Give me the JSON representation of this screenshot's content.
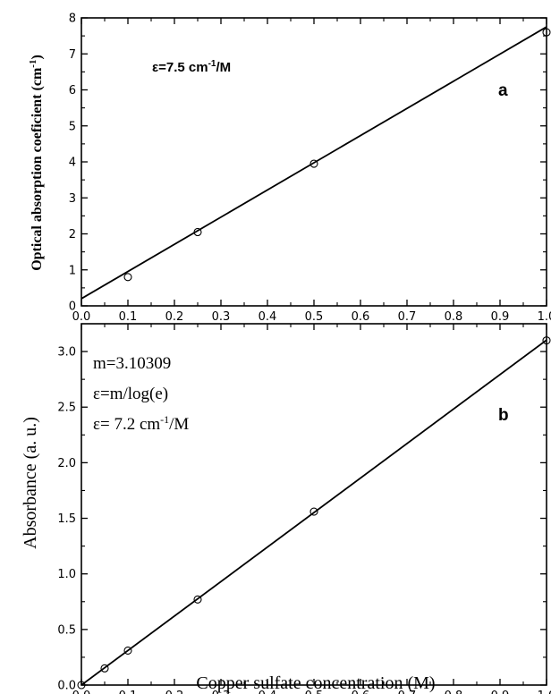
{
  "chart_data": [
    {
      "panel": "a",
      "type": "scatter",
      "xlabel": "",
      "ylabel": "Optical absorption coeficient (cm",
      "ylabel_unit_sup": "-1",
      "ylabel_close": ")",
      "xlim": [
        0.0,
        1.0
      ],
      "ylim": [
        0,
        8
      ],
      "xticks": [
        "0.0",
        "0.1",
        "0.2",
        "0.3",
        "0.4",
        "0.5",
        "0.6",
        "0.7",
        "0.8",
        "0.9",
        "1.0"
      ],
      "yticks": [
        "0",
        "1",
        "2",
        "3",
        "4",
        "5",
        "6",
        "7",
        "8"
      ],
      "points": [
        {
          "x": 0.1,
          "y": 0.8
        },
        {
          "x": 0.25,
          "y": 2.05
        },
        {
          "x": 0.5,
          "y": 3.95
        },
        {
          "x": 1.0,
          "y": 7.6
        }
      ],
      "fit": {
        "x": [
          0.0,
          1.0
        ],
        "y": [
          0.2,
          7.75
        ]
      },
      "annotation": {
        "prefix": "ε=7.5 cm",
        "sup": "-1",
        "suffix": "/M"
      },
      "letter": "a",
      "grid": false
    },
    {
      "panel": "b",
      "type": "scatter",
      "xlabel": "Copper sulfate concentration (M)",
      "ylabel": "Absorbance (a. u.)",
      "xlim": [
        0.0,
        1.0
      ],
      "ylim": [
        0.0,
        3.25
      ],
      "xticks": [
        "0.0",
        "0.1",
        "0.2",
        "0.3",
        "0.4",
        "0.5",
        "0.6",
        "0.7",
        "0.8",
        "0.9",
        "1.0"
      ],
      "yticks": [
        "0.0",
        "0.5",
        "1.0",
        "1.5",
        "2.0",
        "2.5",
        "3.0"
      ],
      "points": [
        {
          "x": 0.0,
          "y": 0.0
        },
        {
          "x": 0.05,
          "y": 0.15
        },
        {
          "x": 0.1,
          "y": 0.31
        },
        {
          "x": 0.25,
          "y": 0.77
        },
        {
          "x": 0.5,
          "y": 1.56
        },
        {
          "x": 1.0,
          "y": 3.1
        }
      ],
      "fit": {
        "x": [
          0.0,
          1.0
        ],
        "y": [
          0.0,
          3.10309
        ]
      },
      "annotation": {
        "line1": "m=3.10309",
        "line2": "ε=m/log(e)",
        "line3_prefix": "ε= 7.2 cm",
        "line3_sup": "-1",
        "line3_suffix": "/M"
      },
      "letter": "b",
      "grid": false
    }
  ]
}
